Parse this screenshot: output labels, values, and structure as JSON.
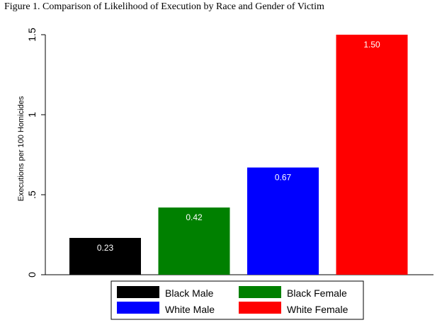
{
  "title": "Figure 1. Comparison of Likelihood of Execution by Race and Gender of Victim",
  "chart_data": {
    "type": "bar",
    "title": "Figure 1. Comparison of Likelihood of Execution by Race and Gender of Victim",
    "xlabel": "",
    "ylabel": "Executions per 100 Homicides",
    "ylim": [
      0,
      1.5
    ],
    "yticks": [
      0,
      0.5,
      1,
      1.5
    ],
    "ytick_labels": [
      "0",
      ".5",
      "1",
      "1.5"
    ],
    "categories": [
      "Black Male",
      "Black Female",
      "White Male",
      "White Female"
    ],
    "values": [
      0.23,
      0.42,
      0.67,
      1.5
    ],
    "value_labels": [
      "0.23",
      "0.42",
      "0.67",
      "1.50"
    ],
    "colors": [
      "#000000",
      "#008000",
      "#0000ff",
      "#ff0000"
    ],
    "grid": false,
    "legend": {
      "placement": "bottom",
      "entries": [
        "Black Male",
        "Black Female",
        "White Male",
        "White Female"
      ]
    }
  }
}
